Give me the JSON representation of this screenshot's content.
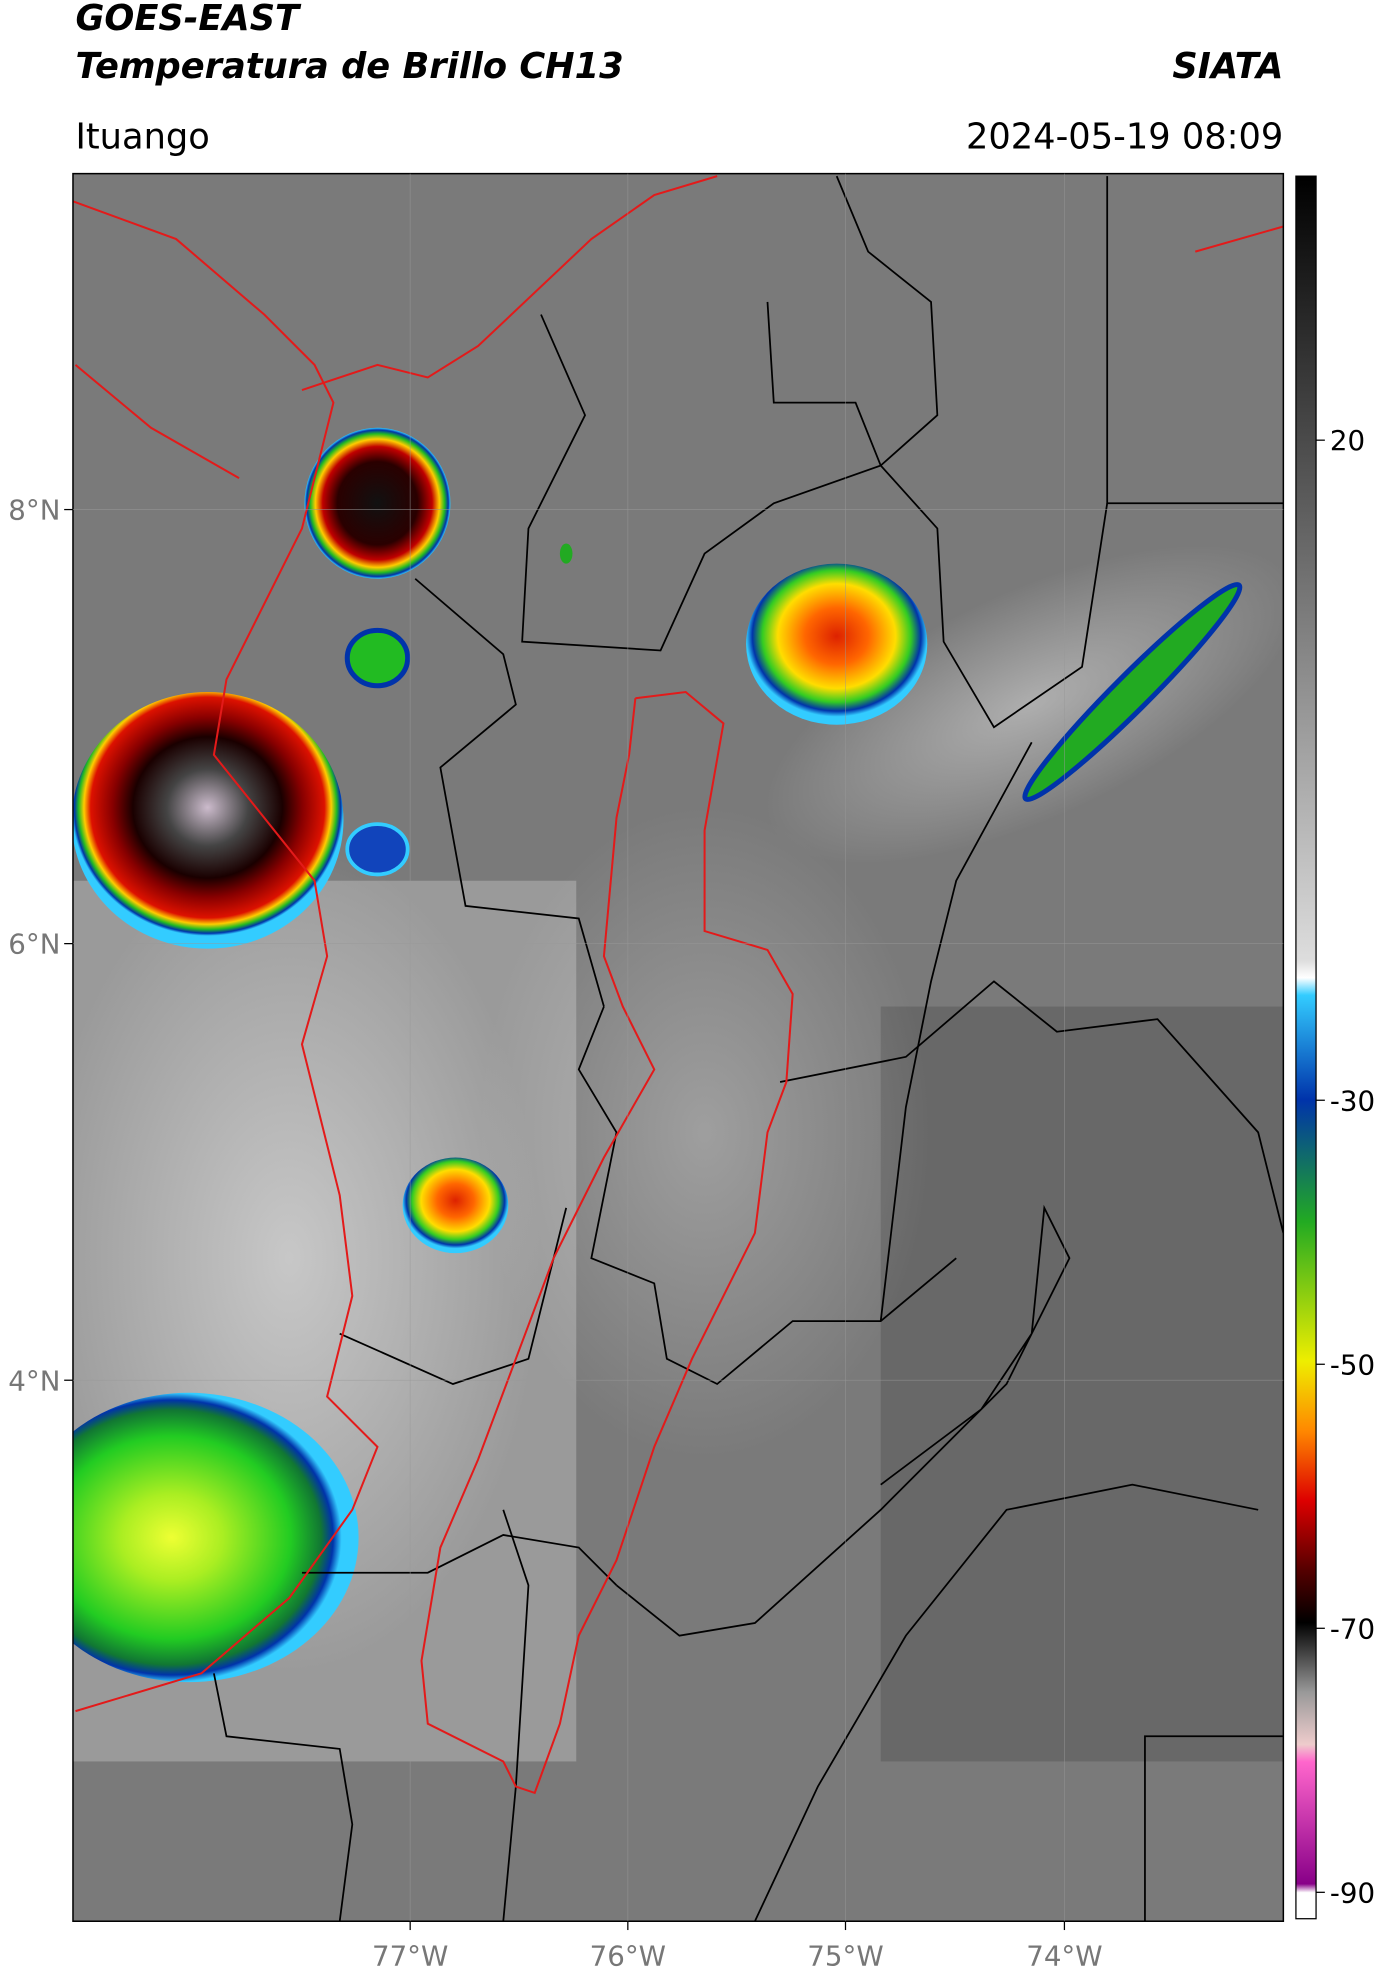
{
  "header": {
    "satellite": "GOES-EAST",
    "product": "Temperatura de Brillo CH13",
    "brand": "SIATA",
    "location": "Ituango",
    "timestamp": "2024-05-19 08:09"
  },
  "map": {
    "lon_labels": [
      "77°W",
      "76°W",
      "75°W",
      "74°W"
    ],
    "lat_labels": [
      "8°N",
      "6°N",
      "4°N"
    ]
  },
  "colorbar": {
    "lim": [
      -92,
      40
    ],
    "ticks": [
      20,
      -30,
      -50,
      -70,
      -90
    ]
  }
}
